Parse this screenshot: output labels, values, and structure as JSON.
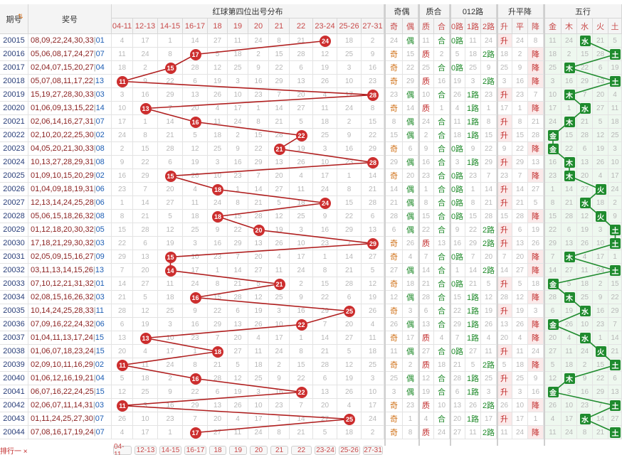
{
  "header": {
    "issue_label": "期号",
    "prize_label": "奖号",
    "red_title": "红球第四位出号分布",
    "parity_title": "奇偶",
    "prime_title": "质合",
    "road_title": "012路",
    "trend_title": "升平降",
    "element_title": "五行"
  },
  "dist_cols": [
    "04-11",
    "12-13",
    "14-15",
    "16-17",
    "18",
    "19",
    "20",
    "21",
    "22",
    "23-24",
    "25-26",
    "27-31"
  ],
  "parity_cols": [
    "奇",
    "偶"
  ],
  "prime_cols": [
    "质",
    "合"
  ],
  "road_cols": [
    "0路",
    "1路",
    "2路"
  ],
  "trend_cols": [
    "升",
    "平",
    "降"
  ],
  "element_cols": [
    "金",
    "木",
    "水",
    "火",
    "土"
  ],
  "rows": [
    {
      "issue": "20015",
      "red": "08,09,22,24,30,33",
      "blue": "01",
      "fourth": 24,
      "parity": "偶",
      "prime": "合",
      "road": "0路",
      "trend": "升",
      "element": "水"
    },
    {
      "issue": "20016",
      "red": "05,06,08,17,24,27",
      "blue": "07",
      "fourth": 17,
      "parity": "奇",
      "prime": "质",
      "road": "2路",
      "trend": "降",
      "element": "土"
    },
    {
      "issue": "20017",
      "red": "02,04,07,15,20,27",
      "blue": "04",
      "fourth": 15,
      "parity": "奇",
      "prime": "合",
      "road": "0路",
      "trend": "降",
      "element": "木"
    },
    {
      "issue": "20018",
      "red": "05,07,08,11,17,22",
      "blue": "13",
      "fourth": 11,
      "parity": "奇",
      "prime": "质",
      "road": "2路",
      "trend": "降",
      "element": "土"
    },
    {
      "issue": "20019",
      "red": "15,19,27,28,30,33",
      "blue": "03",
      "fourth": 28,
      "parity": "偶",
      "prime": "合",
      "road": "1路",
      "trend": "升",
      "element": "木"
    },
    {
      "issue": "20020",
      "red": "01,06,09,13,15,22",
      "blue": "14",
      "fourth": 13,
      "parity": "奇",
      "prime": "质",
      "road": "1路",
      "trend": "降",
      "element": "水"
    },
    {
      "issue": "20021",
      "red": "02,06,14,16,27,31",
      "blue": "07",
      "fourth": 16,
      "parity": "偶",
      "prime": "合",
      "road": "1路",
      "trend": "升",
      "element": "木"
    },
    {
      "issue": "20022",
      "red": "02,10,20,22,25,30",
      "blue": "02",
      "fourth": 22,
      "parity": "偶",
      "prime": "合",
      "road": "1路",
      "trend": "升",
      "element": "金"
    },
    {
      "issue": "20023",
      "red": "04,05,20,21,30,33",
      "blue": "08",
      "fourth": 21,
      "parity": "奇",
      "prime": "合",
      "road": "0路",
      "trend": "降",
      "element": "金"
    },
    {
      "issue": "20024",
      "red": "10,13,27,28,29,31",
      "blue": "08",
      "fourth": 28,
      "parity": "偶",
      "prime": "合",
      "road": "1路",
      "trend": "升",
      "element": "木"
    },
    {
      "issue": "20025",
      "red": "01,09,10,15,20,29",
      "blue": "02",
      "fourth": 15,
      "parity": "奇",
      "prime": "合",
      "road": "0路",
      "trend": "降",
      "element": "木"
    },
    {
      "issue": "20026",
      "red": "01,04,09,18,19,31",
      "blue": "06",
      "fourth": 18,
      "parity": "偶",
      "prime": "合",
      "road": "0路",
      "trend": "升",
      "element": "火"
    },
    {
      "issue": "20027",
      "red": "12,13,14,24,25,28",
      "blue": "06",
      "fourth": 24,
      "parity": "偶",
      "prime": "合",
      "road": "0路",
      "trend": "升",
      "element": "水"
    },
    {
      "issue": "20028",
      "red": "05,06,15,18,26,32",
      "blue": "08",
      "fourth": 18,
      "parity": "偶",
      "prime": "合",
      "road": "0路",
      "trend": "降",
      "element": "火"
    },
    {
      "issue": "20029",
      "red": "01,12,18,20,30,32",
      "blue": "05",
      "fourth": 20,
      "parity": "偶",
      "prime": "合",
      "road": "2路",
      "trend": "升",
      "element": "土"
    },
    {
      "issue": "20030",
      "red": "17,18,21,29,30,32",
      "blue": "03",
      "fourth": 29,
      "parity": "奇",
      "prime": "质",
      "road": "2路",
      "trend": "升",
      "element": "土"
    },
    {
      "issue": "20031",
      "red": "02,05,09,15,16,27",
      "blue": "09",
      "fourth": 15,
      "parity": "奇",
      "prime": "合",
      "road": "0路",
      "trend": "降",
      "element": "木"
    },
    {
      "issue": "20032",
      "red": "03,11,13,14,15,26",
      "blue": "13",
      "fourth": 14,
      "parity": "偶",
      "prime": "合",
      "road": "2路",
      "trend": "降",
      "element": "土"
    },
    {
      "issue": "20033",
      "red": "07,10,12,21,31,32",
      "blue": "01",
      "fourth": 21,
      "parity": "奇",
      "prime": "合",
      "road": "0路",
      "trend": "升",
      "element": "金"
    },
    {
      "issue": "20034",
      "red": "02,08,15,16,26,32",
      "blue": "03",
      "fourth": 16,
      "parity": "偶",
      "prime": "合",
      "road": "1路",
      "trend": "降",
      "element": "木"
    },
    {
      "issue": "20035",
      "red": "10,14,24,25,28,33",
      "blue": "11",
      "fourth": 25,
      "parity": "奇",
      "prime": "合",
      "road": "1路",
      "trend": "升",
      "element": "水"
    },
    {
      "issue": "20036",
      "red": "07,09,16,22,24,32",
      "blue": "06",
      "fourth": 22,
      "parity": "偶",
      "prime": "合",
      "road": "1路",
      "trend": "降",
      "element": "金"
    },
    {
      "issue": "20037",
      "red": "01,04,11,13,17,24",
      "blue": "15",
      "fourth": 13,
      "parity": "奇",
      "prime": "质",
      "road": "1路",
      "trend": "降",
      "element": "水"
    },
    {
      "issue": "20038",
      "red": "01,06,07,18,23,24",
      "blue": "15",
      "fourth": 18,
      "parity": "偶",
      "prime": "合",
      "road": "0路",
      "trend": "升",
      "element": "火"
    },
    {
      "issue": "20039",
      "red": "02,09,10,11,16,29",
      "blue": "02",
      "fourth": 11,
      "parity": "奇",
      "prime": "质",
      "road": "2路",
      "trend": "降",
      "element": "土"
    },
    {
      "issue": "20040",
      "red": "01,06,12,16,19,21",
      "blue": "04",
      "fourth": 16,
      "parity": "偶",
      "prime": "合",
      "road": "1路",
      "trend": "升",
      "element": "木"
    },
    {
      "issue": "20041",
      "red": "06,07,16,22,24,25",
      "blue": "15",
      "fourth": 22,
      "parity": "偶",
      "prime": "合",
      "road": "1路",
      "trend": "升",
      "element": "金"
    },
    {
      "issue": "20042",
      "red": "02,06,07,11,14,31",
      "blue": "03",
      "fourth": 11,
      "parity": "奇",
      "prime": "质",
      "road": "2路",
      "trend": "降",
      "element": "土"
    },
    {
      "issue": "20043",
      "red": "01,11,24,25,27,30",
      "blue": "07",
      "fourth": 25,
      "parity": "奇",
      "prime": "合",
      "road": "1路",
      "trend": "升",
      "element": "水"
    },
    {
      "issue": "20044",
      "red": "07,08,16,17,19,24",
      "blue": "07",
      "fourth": 17,
      "parity": "奇",
      "prime": "质",
      "road": "2路",
      "trend": "降",
      "element": "土"
    }
  ],
  "footer": {
    "label": "排行一"
  },
  "colors": {
    "ball": "#cc2e2e",
    "line": "#b01e1e",
    "element_square": "#1f8b2e",
    "element_line": "#1f8b2e",
    "header_red": "#c84a4a"
  }
}
